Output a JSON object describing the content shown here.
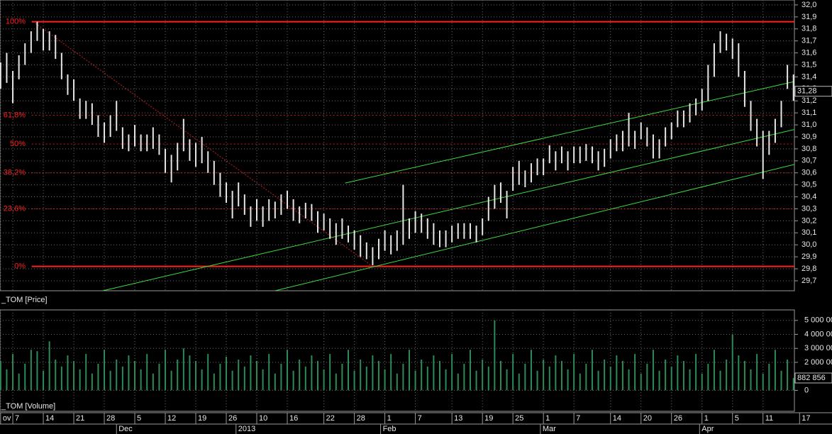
{
  "chart_data": [
    {
      "type": "ohlc",
      "title": "_TOM [Price]",
      "x": [
        -2,
        -1,
        0,
        1,
        2,
        3,
        4,
        5,
        6,
        7,
        8,
        9,
        10,
        11,
        12,
        13,
        14,
        15,
        16,
        17,
        18,
        19,
        20,
        21,
        22,
        23,
        24,
        25,
        26,
        27,
        28,
        29,
        30,
        31,
        32,
        33,
        34,
        35,
        36,
        37,
        38,
        39,
        40,
        41,
        42,
        43,
        44,
        45,
        46,
        47,
        48,
        49,
        50,
        51,
        52,
        53,
        54,
        55,
        56,
        57,
        58,
        59,
        60,
        61,
        62,
        63,
        64,
        65,
        66,
        67,
        68,
        69,
        70,
        71,
        72,
        73,
        74,
        75,
        76,
        77,
        78,
        79,
        80,
        81,
        82,
        83,
        84,
        85,
        86,
        87,
        88,
        89,
        90,
        91,
        92,
        93,
        94,
        95,
        96,
        97,
        98,
        99,
        100,
        101,
        102,
        103,
        104,
        105,
        106,
        107,
        108,
        109,
        110,
        111,
        112,
        113,
        114,
        115,
        116,
        117,
        118,
        119,
        120,
        121,
        122,
        123,
        124,
        125,
        126,
        127,
        128
      ],
      "high": [
        31.52,
        31.6,
        31.45,
        31.58,
        31.68,
        31.78,
        31.86,
        31.8,
        31.78,
        31.75,
        31.6,
        31.42,
        31.38,
        31.22,
        31.2,
        31.18,
        31.08,
        31.02,
        31.08,
        31.2,
        30.98,
        30.92,
        31.0,
        30.92,
        30.92,
        30.98,
        30.92,
        30.8,
        30.75,
        30.85,
        31.05,
        30.88,
        30.85,
        30.9,
        30.78,
        30.7,
        30.6,
        30.52,
        30.45,
        30.52,
        30.42,
        30.32,
        30.38,
        30.32,
        30.38,
        30.36,
        30.42,
        30.45,
        30.38,
        30.32,
        30.35,
        30.34,
        30.28,
        30.26,
        30.22,
        30.18,
        30.22,
        30.16,
        30.12,
        30.08,
        30.02,
        29.98,
        30.05,
        30.12,
        30.08,
        30.12,
        30.5,
        30.22,
        30.28,
        30.26,
        30.22,
        30.18,
        30.12,
        30.12,
        30.16,
        30.18,
        30.18,
        30.18,
        30.16,
        30.22,
        30.4,
        30.5,
        30.52,
        30.45,
        30.65,
        30.7,
        30.62,
        30.68,
        30.72,
        30.72,
        30.83,
        30.78,
        30.82,
        30.78,
        30.82,
        30.82,
        30.84,
        30.82,
        30.78,
        30.8,
        30.88,
        30.92,
        30.95,
        31.1,
        30.95,
        31.02,
        30.98,
        30.92,
        30.88,
        30.98,
        31.02,
        31.12,
        31.12,
        31.18,
        31.22,
        31.3,
        31.5,
        31.68,
        31.78,
        31.76,
        31.72,
        31.68,
        31.45,
        31.2,
        31.05,
        30.95,
        30.95,
        31.05,
        31.2,
        31.5,
        31.42
      ],
      "low": [
        31.3,
        31.35,
        31.18,
        31.38,
        31.5,
        31.6,
        31.7,
        31.62,
        31.62,
        31.55,
        31.38,
        31.25,
        31.2,
        31.05,
        31.05,
        31.0,
        30.9,
        30.85,
        30.9,
        30.95,
        30.8,
        30.78,
        30.82,
        30.78,
        30.78,
        30.8,
        30.75,
        30.6,
        30.52,
        30.62,
        30.78,
        30.7,
        30.65,
        30.68,
        30.6,
        30.5,
        30.4,
        30.35,
        30.22,
        30.32,
        30.25,
        30.15,
        30.2,
        30.15,
        30.2,
        30.22,
        30.25,
        30.3,
        30.2,
        30.18,
        30.22,
        30.2,
        30.1,
        30.12,
        30.05,
        30.0,
        30.05,
        30.02,
        29.96,
        29.9,
        29.88,
        29.83,
        29.88,
        29.95,
        29.92,
        29.95,
        30.0,
        30.05,
        30.1,
        30.1,
        30.05,
        30.0,
        29.98,
        29.98,
        30.02,
        30.05,
        30.05,
        30.05,
        30.02,
        30.08,
        30.2,
        30.3,
        30.35,
        30.22,
        30.45,
        30.5,
        30.48,
        30.52,
        30.58,
        30.58,
        30.68,
        30.62,
        30.68,
        30.62,
        30.68,
        30.68,
        30.7,
        30.68,
        30.62,
        30.65,
        30.72,
        30.78,
        30.78,
        30.82,
        30.8,
        30.88,
        30.82,
        30.72,
        30.72,
        30.82,
        30.88,
        30.98,
        30.98,
        31.02,
        31.08,
        31.12,
        31.2,
        31.4,
        31.6,
        31.62,
        31.55,
        31.4,
        31.15,
        30.95,
        30.82,
        30.55,
        30.75,
        30.85,
        30.98,
        31.3,
        31.2
      ],
      "color": "#e6e6e6",
      "xlim": [
        -2.1,
        128.15
      ],
      "ylim": [
        29.617,
        32.041
      ],
      "yticks": [
        {
          "value": 29.7,
          "label": "29,7"
        },
        {
          "value": 29.8,
          "label": "29,8"
        },
        {
          "value": 29.9,
          "label": "29,9"
        },
        {
          "value": 30.0,
          "label": "30,0"
        },
        {
          "value": 30.1,
          "label": "30,1"
        },
        {
          "value": 30.2,
          "label": "30,2"
        },
        {
          "value": 30.3,
          "label": "30,3"
        },
        {
          "value": 30.4,
          "label": "30,4"
        },
        {
          "value": 30.5,
          "label": "30,5"
        },
        {
          "value": 30.6,
          "label": "30,6"
        },
        {
          "value": 30.7,
          "label": "30,7"
        },
        {
          "value": 30.8,
          "label": "30,8"
        },
        {
          "value": 30.9,
          "label": "30,9"
        },
        {
          "value": 31.0,
          "label": "31,0"
        },
        {
          "value": 31.1,
          "label": "31,1"
        },
        {
          "value": 31.2,
          "label": "31,2"
        },
        {
          "value": 31.3,
          "label": "31,3"
        },
        {
          "value": 31.4,
          "label": "31,4"
        },
        {
          "value": 31.5,
          "label": "31,5"
        },
        {
          "value": 31.6,
          "label": "31,6"
        },
        {
          "value": 31.7,
          "label": "31,7"
        },
        {
          "value": 31.8,
          "label": "31,8"
        },
        {
          "value": 31.9,
          "label": "31,9"
        },
        {
          "value": 32.0,
          "label": "32,0"
        }
      ],
      "grid": true,
      "last": {
        "value": 31.28,
        "label": "31,28"
      },
      "fib_color": "#ff2020",
      "fib_start_x": 3.1,
      "fib_levels": [
        {
          "label": "100%",
          "value": 31.86,
          "style": "solid"
        },
        {
          "label": "61,8%",
          "value": 31.08,
          "style": "dashed"
        },
        {
          "label": "50%",
          "value": 30.84,
          "style": "dashed"
        },
        {
          "label": "38,2%",
          "value": 30.6,
          "style": "dashed"
        },
        {
          "label": "23,6%",
          "value": 30.3,
          "style": "dashed"
        },
        {
          "label": "0%",
          "value": 29.82,
          "style": "solid"
        }
      ],
      "trendlines": [
        {
          "color": "#3cdc3c",
          "style": "solid",
          "x": [
            54.5,
            128.15
          ],
          "y": [
            30.515,
            31.361
          ]
        },
        {
          "color": "#3cdc3c",
          "style": "solid",
          "x": [
            14.77,
            128.15
          ],
          "y": [
            29.617,
            30.961
          ]
        },
        {
          "color": "#3cdc3c",
          "style": "solid",
          "x": [
            43.0,
            128.15
          ],
          "y": [
            29.617,
            30.67
          ]
        },
        {
          "color": "#c02020",
          "style": "dashed",
          "x": [
            3.72,
            59
          ],
          "y": [
            31.846,
            29.82
          ]
        }
      ]
    },
    {
      "type": "bar",
      "title": "_TOM [Volume]",
      "x": [
        -2,
        -1,
        0,
        1,
        2,
        3,
        4,
        5,
        6,
        7,
        8,
        9,
        10,
        11,
        12,
        13,
        14,
        15,
        16,
        17,
        18,
        19,
        20,
        21,
        22,
        23,
        24,
        25,
        26,
        27,
        28,
        29,
        30,
        31,
        32,
        33,
        34,
        35,
        36,
        37,
        38,
        39,
        40,
        41,
        42,
        43,
        44,
        45,
        46,
        47,
        48,
        49,
        50,
        51,
        52,
        53,
        54,
        55,
        56,
        57,
        58,
        59,
        60,
        61,
        62,
        63,
        64,
        65,
        66,
        67,
        68,
        69,
        70,
        71,
        72,
        73,
        74,
        75,
        76,
        77,
        78,
        79,
        80,
        81,
        82,
        83,
        84,
        85,
        86,
        87,
        88,
        89,
        90,
        91,
        92,
        93,
        94,
        95,
        96,
        97,
        98,
        99,
        100,
        101,
        102,
        103,
        104,
        105,
        106,
        107,
        108,
        109,
        110,
        111,
        112,
        113,
        114,
        115,
        116,
        117,
        118,
        119,
        120,
        121,
        122,
        123,
        124,
        125,
        126,
        127,
        128
      ],
      "values": [
        2100000,
        1500000,
        2600000,
        1200000,
        1900000,
        2900000,
        2800000,
        1400000,
        3500000,
        2200000,
        1700000,
        2500000,
        2100000,
        1500000,
        2600000,
        1200000,
        1900000,
        2900000,
        1400000,
        2200000,
        1700000,
        2500000,
        2100000,
        1500000,
        2600000,
        1200000,
        1900000,
        2900000,
        1400000,
        2200000,
        3000000,
        2500000,
        2100000,
        1500000,
        2600000,
        1200000,
        1900000,
        2400000,
        1400000,
        2200000,
        1700000,
        2500000,
        2100000,
        1500000,
        2600000,
        1200000,
        1900000,
        2900000,
        1400000,
        2200000,
        1700000,
        2500000,
        2100000,
        1500000,
        2600000,
        1200000,
        1900000,
        2900000,
        1400000,
        2200000,
        1700000,
        2500000,
        2100000,
        1500000,
        2600000,
        1200000,
        1900000,
        2900000,
        1400000,
        2200000,
        1700000,
        2500000,
        2100000,
        1500000,
        2600000,
        1200000,
        1900000,
        2900000,
        1400000,
        2200000,
        1700000,
        5000000,
        2100000,
        1500000,
        2600000,
        1200000,
        1900000,
        2900000,
        1400000,
        2200000,
        1700000,
        2500000,
        2100000,
        1500000,
        2600000,
        1200000,
        1900000,
        2900000,
        1400000,
        2200000,
        1700000,
        2500000,
        2100000,
        1500000,
        2600000,
        1200000,
        1900000,
        2900000,
        1400000,
        2200000,
        1700000,
        2500000,
        2100000,
        1500000,
        2600000,
        1200000,
        1900000,
        2900000,
        1400000,
        2200000,
        4000000,
        2500000,
        2100000,
        1500000,
        2600000,
        1200000,
        1900000,
        2900000,
        1400000,
        2200000,
        882856
      ],
      "color": "#2e8b57",
      "xlim": [
        -2.1,
        128.15
      ],
      "ylim": [
        -1500000,
        5750000
      ],
      "yticks": [
        0,
        {
          "value": 2000000,
          "label": "2 000 00"
        },
        {
          "value": 3000000,
          "label": "3 000 00"
        },
        {
          "value": 4000000,
          "label": "4 000 00"
        },
        {
          "value": 5000000,
          "label": "5 000 00"
        }
      ],
      "grid": true,
      "last": {
        "value": 882856,
        "label": "882 856"
      },
      "xticks": [
        {
          "value": -2,
          "label": "ov"
        },
        {
          "value": 0,
          "label": "7"
        },
        {
          "value": 5,
          "label": "14"
        },
        {
          "value": 10,
          "label": "21"
        },
        {
          "value": 15,
          "label": "28"
        },
        {
          "value": 20,
          "label": "5"
        },
        {
          "value": 25,
          "label": "12"
        },
        {
          "value": 30,
          "label": "19"
        },
        {
          "value": 35,
          "label": "26"
        },
        {
          "value": 40,
          "label": "10"
        },
        {
          "value": 45,
          "label": "16"
        },
        {
          "value": 51,
          "label": "22"
        },
        {
          "value": 56,
          "label": "28"
        },
        {
          "value": 61,
          "label": "1"
        },
        {
          "value": 66,
          "label": "7"
        },
        {
          "value": 72,
          "label": "13"
        },
        {
          "value": 77,
          "label": "19"
        },
        {
          "value": 82,
          "label": "25"
        },
        {
          "value": 87,
          "label": "1"
        },
        {
          "value": 92,
          "label": "7"
        },
        {
          "value": 98,
          "label": "14"
        },
        {
          "value": 103,
          "label": "20"
        },
        {
          "value": 108,
          "label": "26"
        },
        {
          "value": 113,
          "label": "1"
        },
        {
          "value": 118,
          "label": "5"
        },
        {
          "value": 123,
          "label": "11"
        },
        {
          "value": 129,
          "label": "17"
        }
      ],
      "month_ticks": [
        {
          "value": 17,
          "label": "Dec"
        },
        {
          "value": 36.6,
          "label": "2013"
        },
        {
          "value": 60.3,
          "label": "Feb"
        },
        {
          "value": 86.5,
          "label": "Mar"
        },
        {
          "value": 112.6,
          "label": "Apr"
        }
      ]
    }
  ]
}
